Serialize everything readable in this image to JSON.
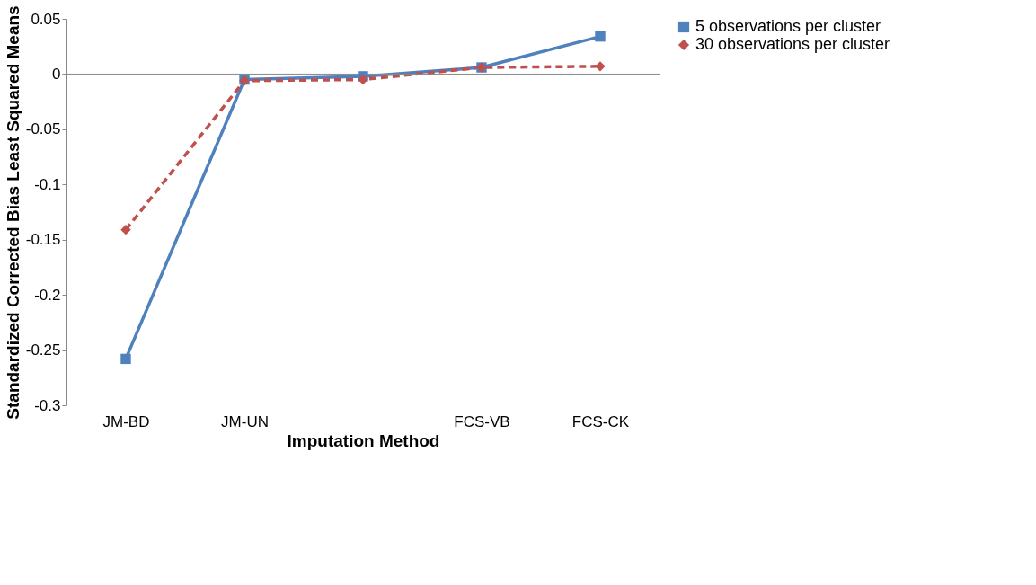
{
  "chart_data": {
    "type": "line",
    "xlabel": "Imputation Method",
    "ylabel": "Standardized Corrected Bias Least Squared Means",
    "categories": [
      "JM-BD",
      "JM-UN",
      null,
      "FCS-VB",
      "FCS-CK"
    ],
    "series": [
      {
        "name": "5 observations per cluster",
        "color": "#4f81bd",
        "values": [
          -0.258,
          -0.005,
          -0.002,
          0.006,
          0.034
        ],
        "marker": "square",
        "line_style": "solid"
      },
      {
        "name": "30 observations per cluster",
        "color": "#c0504d",
        "values": [
          -0.141,
          -0.006,
          -0.005,
          0.006,
          0.007
        ],
        "marker": "diamond",
        "line_style": "dashed"
      }
    ],
    "ylim": [
      -0.3,
      0.05
    ],
    "yticks": [
      -0.3,
      -0.25,
      -0.2,
      -0.15,
      -0.1,
      -0.05,
      0,
      0.05
    ],
    "ref_lines": [
      {
        "axis": "y",
        "value": 0,
        "color": "#888888"
      }
    ],
    "legend": "right"
  }
}
